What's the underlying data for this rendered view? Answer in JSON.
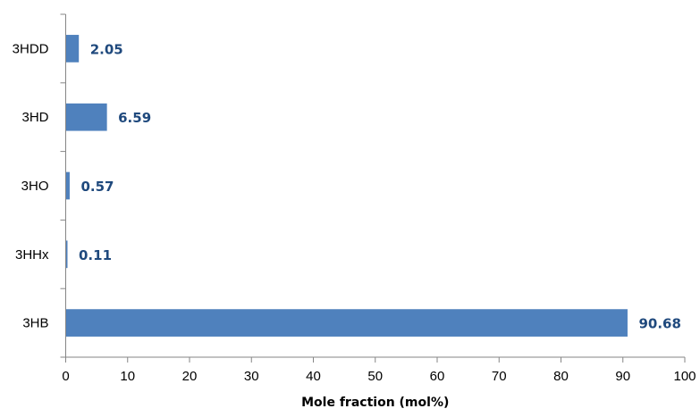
{
  "chart_data": {
    "type": "bar",
    "orientation": "horizontal",
    "categories": [
      "3HDD",
      "3HD",
      "3HO",
      "3HHx",
      "3HB"
    ],
    "values": [
      2.05,
      6.59,
      0.57,
      0.11,
      90.68
    ],
    "data_labels": [
      "2.05",
      "6.59",
      "0.57",
      "0.11",
      "90.68"
    ],
    "title": "",
    "xlabel": "Mole fraction (mol%)",
    "ylabel": "",
    "xlim": [
      0,
      100
    ],
    "x_ticks": [
      0,
      10,
      20,
      30,
      40,
      50,
      60,
      70,
      80,
      90,
      100
    ],
    "x_tick_labels": [
      "0",
      "10",
      "20",
      "30",
      "40",
      "50",
      "60",
      "70",
      "80",
      "90",
      "100"
    ],
    "grid": false,
    "legend": "none",
    "colors": {
      "bar": "#4F81BD",
      "label": "#1F497D",
      "axis": "#868686"
    }
  }
}
